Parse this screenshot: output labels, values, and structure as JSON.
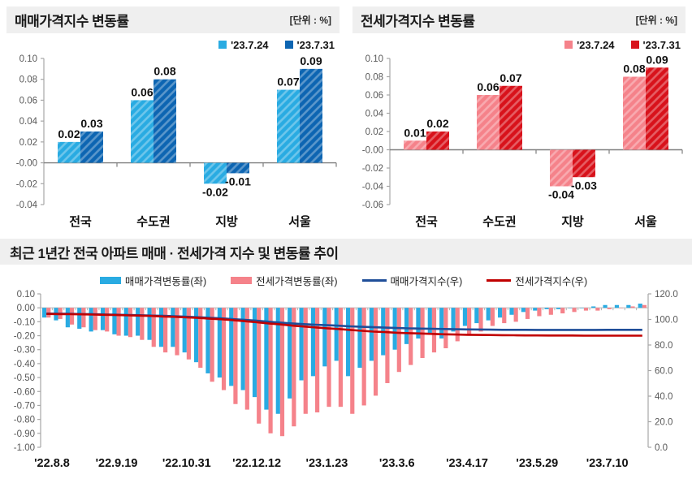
{
  "panels": {
    "sale": {
      "title": "매매가격지수 변동률",
      "unit": "[단위 : %]",
      "legend": [
        {
          "label": "'23.7.24",
          "color": "#29ABE2",
          "type": "bar"
        },
        {
          "label": "'23.7.31",
          "color": "#0D65B2",
          "type": "bar"
        }
      ]
    },
    "jeonse": {
      "title": "전세가격지수 변동률",
      "unit": "[단위 : %]",
      "legend": [
        {
          "label": "'23.7.24",
          "color": "#F5828A",
          "type": "bar"
        },
        {
          "label": "'23.7.31",
          "color": "#D8121B",
          "type": "bar"
        }
      ]
    },
    "trend": {
      "title": "최근 1년간 전국 아파트 매매 · 전세가격 지수 및 변동률 추이",
      "legend": [
        {
          "label": "매매가격변동률(좌)",
          "color": "#29ABE2",
          "type": "bar"
        },
        {
          "label": "전세가격변동률(좌)",
          "color": "#F5828A",
          "type": "bar"
        },
        {
          "label": "매매가격지수(우)",
          "color": "#1F4E99",
          "type": "line"
        },
        {
          "label": "전세가격지수(우)",
          "color": "#C00000",
          "type": "line"
        }
      ]
    }
  },
  "chart_data": [
    {
      "id": "sale",
      "type": "bar",
      "title": "매매가격지수 변동률",
      "unit": "%",
      "categories": [
        "전국",
        "수도권",
        "지방",
        "서울"
      ],
      "series": [
        {
          "name": "'23.7.24",
          "color": "#29ABE2",
          "values": [
            0.02,
            0.06,
            -0.02,
            0.07
          ]
        },
        {
          "name": "'23.7.31",
          "color": "#0D65B2",
          "values": [
            0.03,
            0.08,
            -0.01,
            0.09
          ]
        }
      ],
      "ylim": [
        -0.04,
        0.1
      ],
      "ystep": 0.02,
      "grid": false,
      "legend_position": "top-right"
    },
    {
      "id": "jeonse",
      "type": "bar",
      "title": "전세가격지수 변동률",
      "unit": "%",
      "categories": [
        "전국",
        "수도권",
        "지방",
        "서울"
      ],
      "series": [
        {
          "name": "'23.7.24",
          "color": "#F5828A",
          "values": [
            0.01,
            0.06,
            -0.04,
            0.08
          ]
        },
        {
          "name": "'23.7.31",
          "color": "#D8121B",
          "values": [
            0.02,
            0.07,
            -0.03,
            0.09
          ]
        }
      ],
      "ylim": [
        -0.06,
        0.1
      ],
      "ystep": 0.02,
      "grid": false,
      "legend_position": "top-right"
    },
    {
      "id": "trend",
      "type": "bar+line",
      "title": "최근 1년간 전국 아파트 매매 · 전세가격 지수 및 변동률 추이",
      "n_points": 52,
      "x_tick_labels": [
        "'22.8.8",
        "'22.9.19",
        "'22.10.31",
        "'22.12.12",
        "'23.1.23",
        "'23.3.6",
        "'23.4.17",
        "'23.5.29",
        "'23.7.10"
      ],
      "x_tick_every": 6,
      "left_axis": {
        "min": -1.0,
        "max": 0.1,
        "step": 0.1
      },
      "right_axis": {
        "min": 0.0,
        "max": 120.0,
        "step": 20.0
      },
      "grid": false,
      "legend_position": "top-center",
      "series": [
        {
          "name": "매매가격변동률(좌)",
          "type": "bar",
          "axis": "left",
          "color": "#29ABE2",
          "values": [
            -0.07,
            -0.09,
            -0.14,
            -0.15,
            -0.17,
            -0.16,
            -0.19,
            -0.2,
            -0.2,
            -0.23,
            -0.28,
            -0.28,
            -0.32,
            -0.39,
            -0.47,
            -0.5,
            -0.56,
            -0.59,
            -0.64,
            -0.73,
            -0.76,
            -0.65,
            -0.52,
            -0.49,
            -0.42,
            -0.38,
            -0.49,
            -0.43,
            -0.38,
            -0.34,
            -0.3,
            -0.26,
            -0.22,
            -0.19,
            -0.22,
            -0.17,
            -0.13,
            -0.11,
            -0.09,
            -0.07,
            -0.05,
            -0.03,
            -0.02,
            -0.01,
            -0.01,
            0.0,
            0.0,
            0.01,
            0.02,
            0.02,
            0.02,
            0.03
          ]
        },
        {
          "name": "전세가격변동률(좌)",
          "type": "bar",
          "axis": "left",
          "color": "#F5828A",
          "values": [
            -0.07,
            -0.08,
            -0.12,
            -0.14,
            -0.16,
            -0.17,
            -0.2,
            -0.21,
            -0.23,
            -0.28,
            -0.32,
            -0.34,
            -0.37,
            -0.43,
            -0.53,
            -0.59,
            -0.69,
            -0.73,
            -0.83,
            -0.9,
            -0.92,
            -0.85,
            -0.76,
            -0.75,
            -0.71,
            -0.71,
            -0.76,
            -0.7,
            -0.63,
            -0.54,
            -0.46,
            -0.41,
            -0.36,
            -0.32,
            -0.29,
            -0.24,
            -0.2,
            -0.17,
            -0.13,
            -0.11,
            -0.1,
            -0.08,
            -0.06,
            -0.05,
            -0.04,
            -0.03,
            -0.02,
            -0.02,
            -0.01,
            0.0,
            0.01,
            0.02
          ]
        },
        {
          "name": "매매가격지수(우)",
          "type": "line",
          "axis": "right",
          "color": "#1F4E99",
          "values": [
            104.6,
            104.5,
            104.4,
            104.2,
            104.1,
            103.9,
            103.7,
            103.5,
            103.3,
            103.0,
            102.8,
            102.5,
            102.1,
            101.7,
            101.3,
            100.8,
            100.2,
            99.6,
            99.0,
            98.2,
            97.5,
            96.9,
            96.3,
            95.9,
            95.5,
            95.1,
            94.6,
            94.2,
            93.9,
            93.6,
            93.3,
            93.0,
            92.8,
            92.7,
            92.5,
            92.3,
            92.2,
            92.1,
            92.0,
            91.9,
            91.9,
            91.9,
            91.8,
            91.8,
            91.8,
            91.8,
            91.8,
            91.8,
            91.9,
            91.9,
            91.9,
            91.9
          ]
        },
        {
          "name": "전세가격지수(우)",
          "type": "line",
          "axis": "right",
          "color": "#C00000",
          "values": [
            104.3,
            104.2,
            104.1,
            104.0,
            103.8,
            103.6,
            103.4,
            103.2,
            103.0,
            102.7,
            102.3,
            102.0,
            101.6,
            101.2,
            100.6,
            100.1,
            99.4,
            98.6,
            97.8,
            96.9,
            96.1,
            95.2,
            94.5,
            93.8,
            93.1,
            92.5,
            91.8,
            91.1,
            90.5,
            90.1,
            89.6,
            89.3,
            89.0,
            88.7,
            88.4,
            88.2,
            88.0,
            87.9,
            87.8,
            87.7,
            87.6,
            87.5,
            87.5,
            87.4,
            87.4,
            87.4,
            87.3,
            87.3,
            87.3,
            87.3,
            87.3,
            87.3
          ]
        }
      ]
    }
  ]
}
